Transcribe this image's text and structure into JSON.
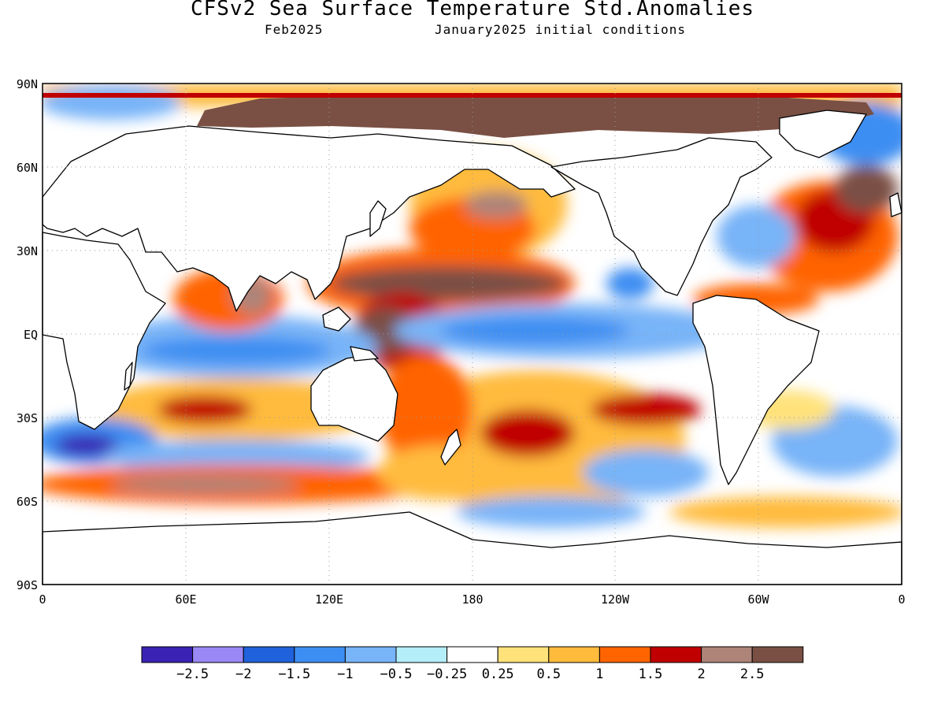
{
  "title": "CFSv2 Sea Surface Temperature Std.Anomalies",
  "subtitle_left": "Feb2025",
  "subtitle_right": "January2025 initial conditions",
  "axes": {
    "lat_labels": [
      "90N",
      "60N",
      "30N",
      "EQ",
      "30S",
      "60S",
      "90S"
    ],
    "lon_labels": [
      "0",
      "60E",
      "120E",
      "180",
      "120W",
      "60W",
      "0"
    ],
    "lat_range": [
      -90,
      90
    ],
    "lon_range": [
      0,
      360
    ],
    "grid": "dotted"
  },
  "colorbar": {
    "levels": [
      "-2.5",
      "-2",
      "-1.5",
      "-1",
      "-0.5",
      "-0.25",
      "0.25",
      "0.5",
      "1",
      "1.5",
      "2",
      "2.5"
    ],
    "colors": [
      "#3a22b4",
      "#9a88f5",
      "#1f62dc",
      "#3c8ef2",
      "#78b4f8",
      "#b4eef8",
      "#ffffff",
      "#ffe27a",
      "#ffbb3c",
      "#ff6400",
      "#c00000",
      "#ae8478",
      "#7a5044"
    ]
  },
  "land_color": "#ffffff",
  "coast_color": "#000000"
}
